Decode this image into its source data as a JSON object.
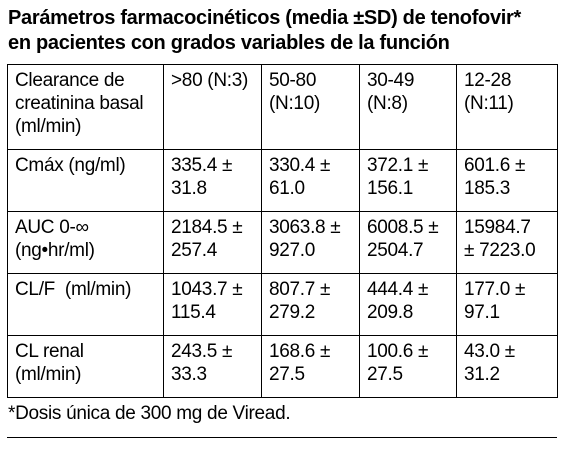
{
  "title": {
    "line1": "Parámetros farmacocinéticos (media ±SD) de tenofovir*",
    "line2": "en pacientes con grados variables de la función"
  },
  "table": {
    "header": [
      [
        "Clearance de",
        "creatinina basal",
        "(ml/min)"
      ],
      [
        ">80 (N:3)"
      ],
      [
        "50-80",
        "(N:10)"
      ],
      [
        "30-49",
        "(N:8)"
      ],
      [
        "12-28",
        "(N:11)"
      ]
    ],
    "rows": [
      {
        "label": [
          "Cmáx (ng/ml)"
        ],
        "cells": [
          [
            "335.4 ±",
            "31.8"
          ],
          [
            "330.4 ±",
            "61.0"
          ],
          [
            "372.1 ±",
            "156.1"
          ],
          [
            "601.6 ±",
            "185.3"
          ]
        ]
      },
      {
        "label": [
          "AUC 0-∞",
          "(ng•hr/ml)"
        ],
        "cells": [
          [
            "2184.5 ±",
            "257.4"
          ],
          [
            "3063.8 ±",
            "927.0"
          ],
          [
            "6008.5 ±",
            "2504.7"
          ],
          [
            "15984.7",
            "± 7223.0"
          ]
        ]
      },
      {
        "label": [
          "CL/F  (ml/min)"
        ],
        "cells": [
          [
            "1043.7 ±",
            "115.4"
          ],
          [
            "807.7 ±",
            "279.2"
          ],
          [
            "444.4 ±",
            "209.8"
          ],
          [
            "177.0 ±",
            "97.1"
          ]
        ]
      },
      {
        "label": [
          "CL renal",
          "(ml/min)"
        ],
        "cells": [
          [
            "243.5 ±",
            "33.3"
          ],
          [
            "168.6 ±",
            "27.5"
          ],
          [
            "100.6 ±",
            "27.5"
          ],
          [
            "43.0 ±",
            "31.2"
          ]
        ]
      }
    ]
  },
  "footnote": "*Dosis única de 300 mg de Viread."
}
